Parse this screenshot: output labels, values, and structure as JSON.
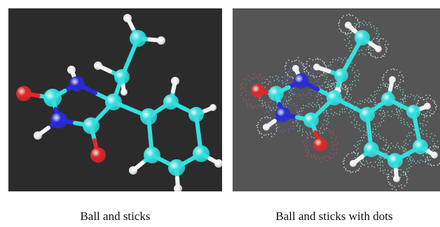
{
  "panels": [
    {
      "id": "left",
      "caption": "Ball and sticks",
      "background": "#2b2b2b",
      "dots": false
    },
    {
      "id": "right",
      "caption": "Ball and sticks with dots",
      "background": "#555555",
      "dots": true
    }
  ],
  "colors": {
    "carbon": "#33e0e0",
    "nitrogen": "#2a2ad8",
    "oxygen": "#e02828",
    "hydrogen": "#f2f2f2"
  }
}
